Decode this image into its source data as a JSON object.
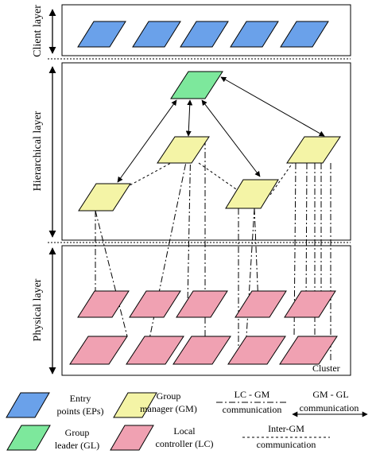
{
  "layers": {
    "client": "Client layer",
    "hierarchical": "Hierarchical layer",
    "physical": "Physical layer"
  },
  "cluster_label": "Cluster",
  "legend": {
    "ep": [
      "Entry",
      "points (EPs)"
    ],
    "gm": [
      "Group",
      "manager (GM)"
    ],
    "gl": [
      "Group",
      "leader (GL)"
    ],
    "lc": [
      "Local",
      "controller (LC)"
    ],
    "lc_gm": [
      "LC - GM",
      "communication"
    ],
    "gm_gl": [
      "GM - GL",
      "communication"
    ],
    "inter_gm": [
      "Inter-GM",
      "communication"
    ]
  },
  "colors": {
    "ep": "#6aa1ea",
    "gm": "#f4f4a6",
    "gl": "#7de89c",
    "lc": "#f0a1b2"
  }
}
